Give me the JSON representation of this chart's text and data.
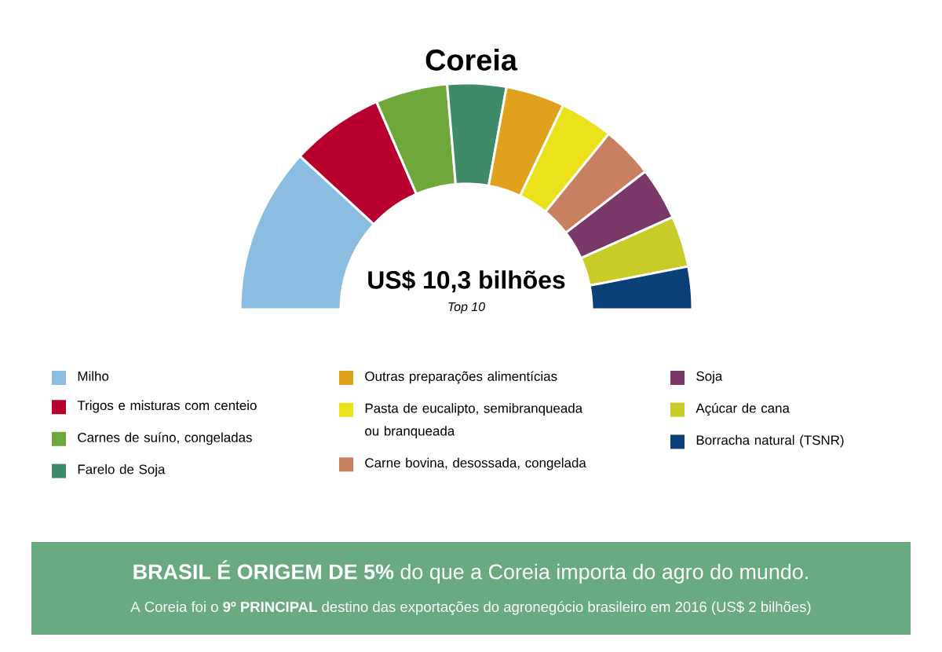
{
  "chart_data": {
    "type": "donut",
    "title": "Coreia",
    "categories": [
      "Milho",
      "Trigos e misturas com centeio",
      "Carnes de suíno, congeladas",
      "Farelo de Soja",
      "Outras preparações alimentícias",
      "Pasta de eucalipto, semibranqueada ou branqueada",
      "Carne bovina, desossada, congelada",
      "Soja",
      "Açúcar de cana",
      "Borracha natural (TSNR)"
    ],
    "values": [
      23.7,
      13.3,
      10.3,
      8.4,
      8.4,
      7.6,
      7.4,
      7.5,
      7.3,
      6.1
    ],
    "colors": [
      "#8bbde0",
      "#b8002e",
      "#6fa83a",
      "#3f8a68",
      "#e0a21c",
      "#ece21c",
      "#c88060",
      "#7a3868",
      "#c9cc28",
      "#0a3f78"
    ],
    "legend": "bottom",
    "annotations": [
      "US$ 10,3 bilhões",
      "Top 10",
      "**BRASIL É ORIGEM DE 5%** do que a Coreia importa do agro do mundo.",
      "A Coreia foi o **9º PRINCIPAL** destino das exportações do agronegócio brasileiro em 2016 (US$ 2 bilhões)"
    ]
  }
}
